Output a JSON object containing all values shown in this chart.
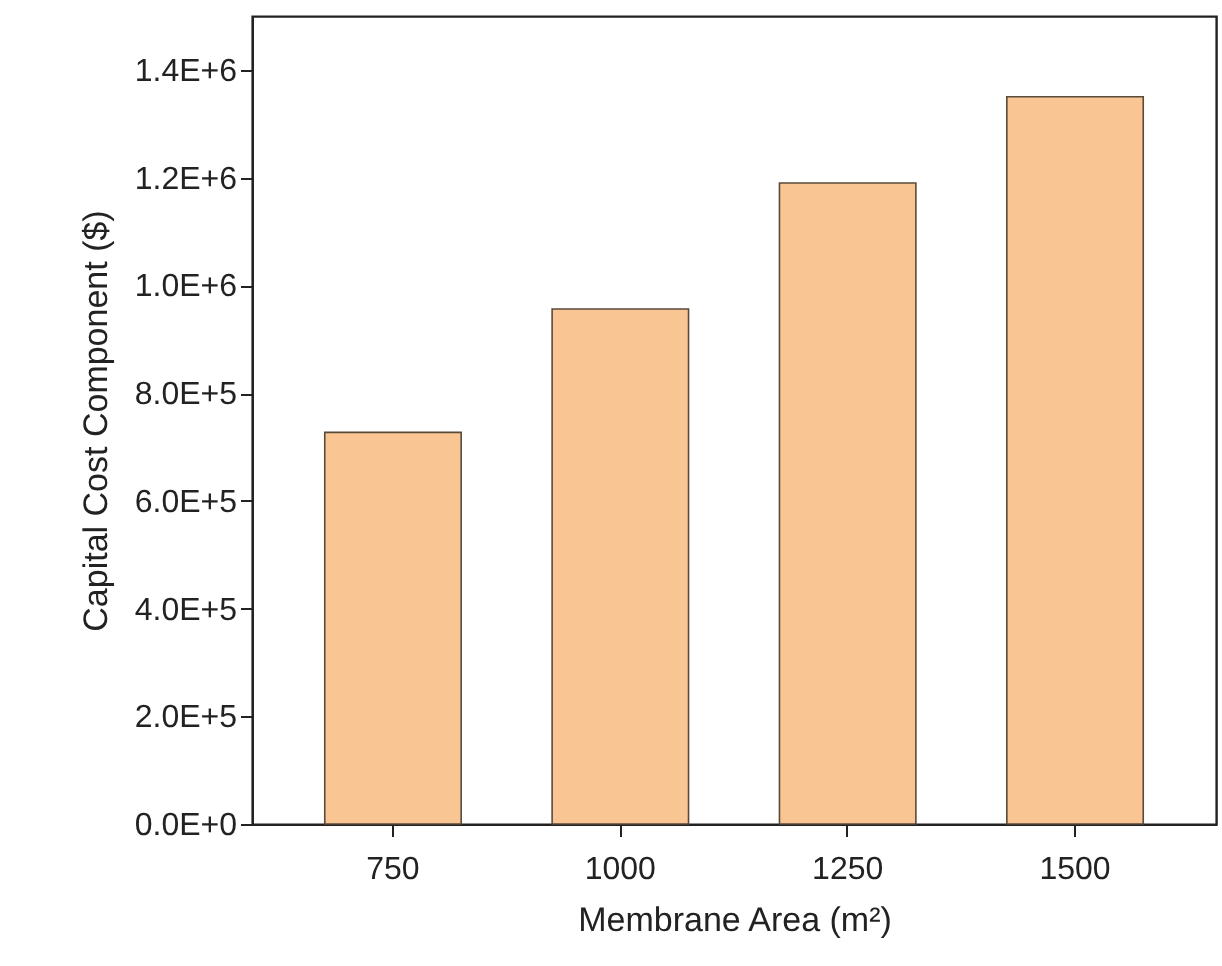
{
  "chart_data": {
    "type": "bar",
    "xlabel": "Membrane Area (m²)",
    "ylabel": "Capital Cost Component ($)",
    "categories": [
      "750",
      "1000",
      "1250",
      "1500"
    ],
    "values": [
      727000,
      956000,
      1190000,
      1350000
    ],
    "color": "#f9c593",
    "ylim": [
      0,
      1500000
    ],
    "yticks": [
      {
        "value": 0,
        "label": "0.0E+0"
      },
      {
        "value": 200000,
        "label": "2.0E+5"
      },
      {
        "value": 400000,
        "label": "4.0E+5"
      },
      {
        "value": 600000,
        "label": "6.0E+5"
      },
      {
        "value": 800000,
        "label": "8.0E+5"
      },
      {
        "value": 1000000,
        "label": "1.0E+6"
      },
      {
        "value": 1200000,
        "label": "1.2E+6"
      },
      {
        "value": 1400000,
        "label": "1.4E+6"
      }
    ],
    "grid": false
  }
}
